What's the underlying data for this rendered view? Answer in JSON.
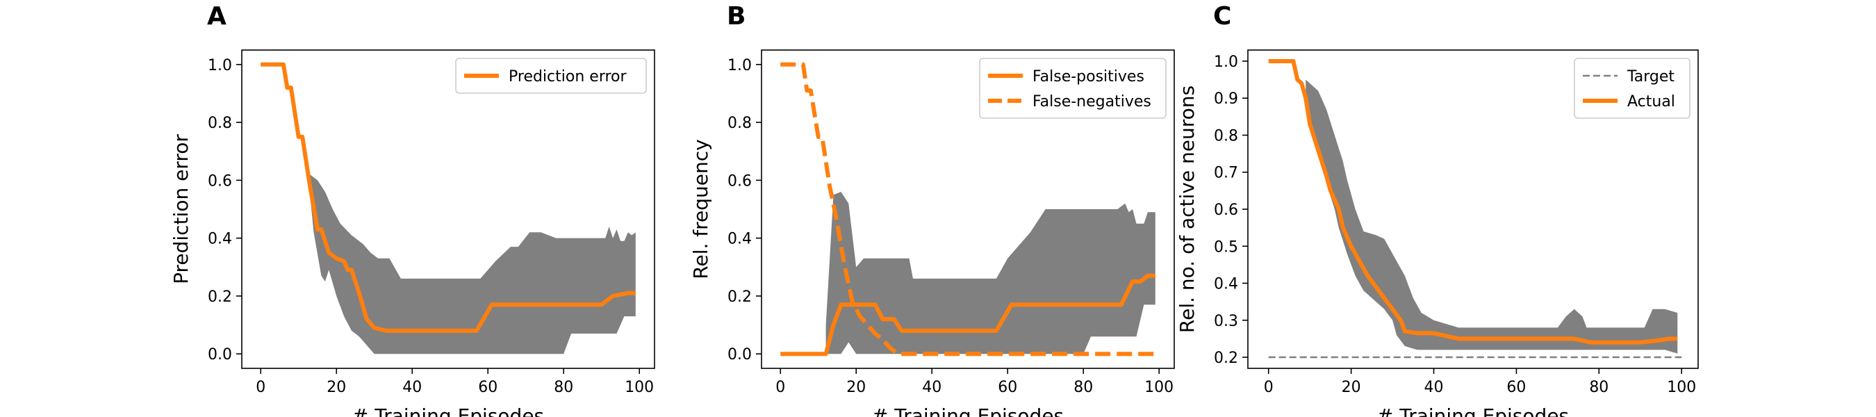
{
  "colors": {
    "series": "#ff7f0e",
    "band": "#808080",
    "target": "#808080",
    "axis": "#000000"
  },
  "chart_data": [
    {
      "panel_label": "A",
      "type": "line",
      "xlabel": "# Training Episodes",
      "ylabel": "Prediction error",
      "xlim": [
        -5,
        104
      ],
      "ylim": [
        -0.05,
        1.05
      ],
      "xticks": [
        0,
        20,
        40,
        60,
        80,
        100
      ],
      "yticks": [
        0.0,
        0.2,
        0.4,
        0.6,
        0.8,
        1.0
      ],
      "ytick_labels": [
        "0.0",
        "0.2",
        "0.4",
        "0.6",
        "0.8",
        "1.0"
      ],
      "legend": "top-right",
      "series": [
        {
          "name": "Prediction error",
          "style": "solid",
          "points": [
            [
              0,
              1.0
            ],
            [
              6,
              1.0
            ],
            [
              7,
              0.92
            ],
            [
              8,
              0.92
            ],
            [
              10,
              0.75
            ],
            [
              11,
              0.75
            ],
            [
              13,
              0.58
            ],
            [
              15,
              0.43
            ],
            [
              16,
              0.43
            ],
            [
              18,
              0.35
            ],
            [
              20,
              0.33
            ],
            [
              22,
              0.32
            ],
            [
              23,
              0.29
            ],
            [
              24,
              0.29
            ],
            [
              26,
              0.21
            ],
            [
              28,
              0.12
            ],
            [
              30,
              0.09
            ],
            [
              33,
              0.08
            ],
            [
              57,
              0.08
            ],
            [
              61,
              0.17
            ],
            [
              90,
              0.17
            ],
            [
              93,
              0.2
            ],
            [
              97,
              0.21
            ],
            [
              99,
              0.21
            ]
          ]
        }
      ],
      "band": {
        "upper": [
          [
            13,
            0.62
          ],
          [
            15,
            0.6
          ],
          [
            17,
            0.56
          ],
          [
            19,
            0.5
          ],
          [
            21,
            0.45
          ],
          [
            24,
            0.41
          ],
          [
            27,
            0.38
          ],
          [
            29,
            0.35
          ],
          [
            31,
            0.33
          ],
          [
            34,
            0.33
          ],
          [
            37,
            0.26
          ],
          [
            58,
            0.26
          ],
          [
            62,
            0.32
          ],
          [
            66,
            0.37
          ],
          [
            68,
            0.37
          ],
          [
            71,
            0.42
          ],
          [
            74,
            0.42
          ],
          [
            78,
            0.4
          ],
          [
            91,
            0.4
          ],
          [
            92,
            0.44
          ],
          [
            93,
            0.4
          ],
          [
            94,
            0.43
          ],
          [
            95,
            0.39
          ],
          [
            96,
            0.39
          ],
          [
            97,
            0.42
          ],
          [
            98,
            0.41
          ],
          [
            99,
            0.42
          ]
        ],
        "lower": [
          [
            13,
            0.55
          ],
          [
            14,
            0.42
          ],
          [
            16,
            0.27
          ],
          [
            17,
            0.25
          ],
          [
            18,
            0.29
          ],
          [
            20,
            0.2
          ],
          [
            22,
            0.13
          ],
          [
            24,
            0.08
          ],
          [
            26,
            0.06
          ],
          [
            28,
            0.03
          ],
          [
            30,
            0.0
          ],
          [
            80,
            0.0
          ],
          [
            82,
            0.07
          ],
          [
            94,
            0.07
          ],
          [
            96,
            0.13
          ],
          [
            99,
            0.13
          ]
        ]
      }
    },
    {
      "panel_label": "B",
      "type": "line",
      "xlabel": "# Training Episodes",
      "ylabel": "Rel. frequency",
      "xlim": [
        -5,
        104
      ],
      "ylim": [
        -0.05,
        1.05
      ],
      "xticks": [
        0,
        20,
        40,
        60,
        80,
        100
      ],
      "yticks": [
        0.0,
        0.2,
        0.4,
        0.6,
        0.8,
        1.0
      ],
      "ytick_labels": [
        "0.0",
        "0.2",
        "0.4",
        "0.6",
        "0.8",
        "1.0"
      ],
      "legend": "top-right",
      "series": [
        {
          "name": "False-positives",
          "style": "solid",
          "points": [
            [
              0,
              0.0
            ],
            [
              12,
              0.0
            ],
            [
              14,
              0.1
            ],
            [
              16,
              0.17
            ],
            [
              22,
              0.17
            ],
            [
              25,
              0.17
            ],
            [
              27,
              0.12
            ],
            [
              30,
              0.12
            ],
            [
              32,
              0.08
            ],
            [
              57,
              0.08
            ],
            [
              61,
              0.17
            ],
            [
              90,
              0.17
            ],
            [
              93,
              0.25
            ],
            [
              95,
              0.25
            ],
            [
              97,
              0.27
            ],
            [
              99,
              0.27
            ]
          ]
        },
        {
          "name": "False-negatives",
          "style": "dashed",
          "points": [
            [
              0,
              1.0
            ],
            [
              6,
              1.0
            ],
            [
              7,
              0.91
            ],
            [
              8,
              0.91
            ],
            [
              10,
              0.75
            ],
            [
              11,
              0.75
            ],
            [
              13,
              0.58
            ],
            [
              15,
              0.45
            ],
            [
              17,
              0.3
            ],
            [
              19,
              0.18
            ],
            [
              21,
              0.13
            ],
            [
              23,
              0.1
            ],
            [
              25,
              0.07
            ],
            [
              27,
              0.05
            ],
            [
              29,
              0.02
            ],
            [
              31,
              0.0
            ],
            [
              99,
              0.0
            ]
          ]
        }
      ],
      "band": {
        "upper": [
          [
            12,
            0.1
          ],
          [
            14,
            0.55
          ],
          [
            16,
            0.56
          ],
          [
            18,
            0.52
          ],
          [
            20,
            0.3
          ],
          [
            22,
            0.33
          ],
          [
            34,
            0.33
          ],
          [
            35,
            0.26
          ],
          [
            57,
            0.26
          ],
          [
            60,
            0.33
          ],
          [
            66,
            0.42
          ],
          [
            70,
            0.5
          ],
          [
            89,
            0.5
          ],
          [
            91,
            0.52
          ],
          [
            92,
            0.49
          ],
          [
            93,
            0.5
          ],
          [
            94,
            0.45
          ],
          [
            96,
            0.45
          ],
          [
            97,
            0.49
          ],
          [
            99,
            0.49
          ]
        ],
        "lower": [
          [
            12,
            0.0
          ],
          [
            16,
            0.0
          ],
          [
            18,
            0.04
          ],
          [
            20,
            0.0
          ],
          [
            80,
            0.0
          ],
          [
            82,
            0.06
          ],
          [
            94,
            0.06
          ],
          [
            96,
            0.17
          ],
          [
            99,
            0.17
          ]
        ]
      }
    },
    {
      "panel_label": "C",
      "type": "line",
      "xlabel": "# Training Episodes",
      "ylabel": "Rel. no. of active neurons",
      "xlim": [
        -5,
        104
      ],
      "ylim": [
        0.17,
        1.03
      ],
      "xticks": [
        0,
        20,
        40,
        60,
        80,
        100
      ],
      "yticks": [
        0.2,
        0.3,
        0.4,
        0.5,
        0.6,
        0.7,
        0.8,
        0.9,
        1.0
      ],
      "ytick_labels": [
        "0.2",
        "0.3",
        "0.4",
        "0.5",
        "0.6",
        "0.7",
        "0.8",
        "0.9",
        "1.0"
      ],
      "legend": "top-right",
      "series": [
        {
          "name": "Target",
          "style": "thin-dashed",
          "points": [
            [
              0,
              0.2
            ],
            [
              100,
              0.2
            ]
          ]
        },
        {
          "name": "Actual",
          "style": "solid",
          "points": [
            [
              0,
              1.0
            ],
            [
              6,
              1.0
            ],
            [
              7,
              0.95
            ],
            [
              8,
              0.94
            ],
            [
              9,
              0.9
            ],
            [
              10,
              0.83
            ],
            [
              12,
              0.76
            ],
            [
              14,
              0.69
            ],
            [
              15,
              0.65
            ],
            [
              17,
              0.6
            ],
            [
              18,
              0.55
            ],
            [
              20,
              0.5
            ],
            [
              22,
              0.46
            ],
            [
              24,
              0.42
            ],
            [
              26,
              0.39
            ],
            [
              28,
              0.36
            ],
            [
              30,
              0.33
            ],
            [
              32,
              0.3
            ],
            [
              33,
              0.27
            ],
            [
              36,
              0.265
            ],
            [
              40,
              0.265
            ],
            [
              42,
              0.26
            ],
            [
              46,
              0.25
            ],
            [
              74,
              0.25
            ],
            [
              78,
              0.24
            ],
            [
              90,
              0.24
            ],
            [
              94,
              0.245
            ],
            [
              97,
              0.25
            ],
            [
              99,
              0.25
            ]
          ]
        }
      ],
      "band": {
        "upper": [
          [
            9,
            0.95
          ],
          [
            12,
            0.92
          ],
          [
            14,
            0.87
          ],
          [
            16,
            0.8
          ],
          [
            18,
            0.73
          ],
          [
            19,
            0.68
          ],
          [
            21,
            0.6
          ],
          [
            23,
            0.54
          ],
          [
            26,
            0.53
          ],
          [
            28,
            0.52
          ],
          [
            31,
            0.46
          ],
          [
            33,
            0.42
          ],
          [
            35,
            0.36
          ],
          [
            37,
            0.32
          ],
          [
            40,
            0.3
          ],
          [
            46,
            0.28
          ],
          [
            70,
            0.28
          ],
          [
            72,
            0.31
          ],
          [
            74,
            0.33
          ],
          [
            76,
            0.31
          ],
          [
            77,
            0.28
          ],
          [
            91,
            0.28
          ],
          [
            93,
            0.33
          ],
          [
            96,
            0.33
          ],
          [
            99,
            0.32
          ]
        ],
        "lower": [
          [
            9,
            0.9
          ],
          [
            11,
            0.8
          ],
          [
            13,
            0.72
          ],
          [
            14,
            0.67
          ],
          [
            16,
            0.6
          ],
          [
            17,
            0.55
          ],
          [
            19,
            0.48
          ],
          [
            21,
            0.42
          ],
          [
            23,
            0.38
          ],
          [
            26,
            0.35
          ],
          [
            28,
            0.33
          ],
          [
            30,
            0.3
          ],
          [
            31,
            0.26
          ],
          [
            33,
            0.23
          ],
          [
            36,
            0.22
          ],
          [
            40,
            0.22
          ],
          [
            46,
            0.22
          ],
          [
            78,
            0.22
          ],
          [
            96,
            0.22
          ],
          [
            99,
            0.21
          ]
        ]
      }
    }
  ]
}
